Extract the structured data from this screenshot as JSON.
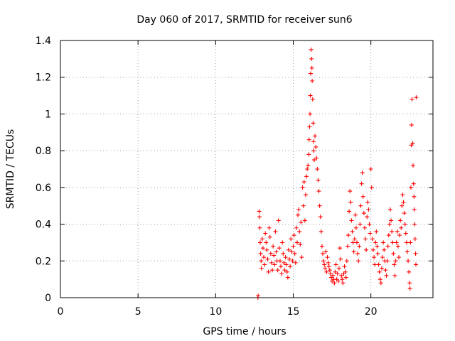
{
  "chart_data": {
    "type": "scatter",
    "title": "Day 060 of 2017, SRMTID for receiver sun6",
    "xlabel": "GPS time / hours",
    "ylabel": "SRMTID / TECUs",
    "xlim": [
      0,
      24
    ],
    "ylim": [
      0,
      1.4
    ],
    "xticks": [
      0,
      5,
      10,
      15,
      20
    ],
    "xtick_labels": [
      "0",
      "5",
      "10",
      "15",
      "20"
    ],
    "yticks": [
      0,
      0.2,
      0.4,
      0.6,
      0.8,
      1,
      1.2,
      1.4
    ],
    "ytick_labels": [
      "0",
      "0.2",
      "0.4",
      "0.6",
      "0.8",
      "1",
      "1.2",
      "1.4"
    ],
    "grid": true,
    "legend": "none",
    "marker": "plus",
    "color": "#ff0000",
    "series": [
      {
        "values": [
          [
            12.72,
            0.0
          ],
          [
            12.74,
            0.01
          ],
          [
            12.8,
            0.47
          ],
          [
            12.82,
            0.44
          ],
          [
            12.85,
            0.38
          ],
          [
            12.87,
            0.3
          ],
          [
            12.9,
            0.24
          ],
          [
            12.93,
            0.2
          ],
          [
            12.95,
            0.16
          ],
          [
            13.0,
            0.32
          ],
          [
            13.05,
            0.27
          ],
          [
            13.1,
            0.22
          ],
          [
            13.15,
            0.18
          ],
          [
            13.2,
            0.35
          ],
          [
            13.25,
            0.3
          ],
          [
            13.3,
            0.26
          ],
          [
            13.35,
            0.21
          ],
          [
            13.4,
            0.14
          ],
          [
            13.45,
            0.38
          ],
          [
            13.5,
            0.33
          ],
          [
            13.55,
            0.24
          ],
          [
            13.6,
            0.19
          ],
          [
            13.65,
            0.15
          ],
          [
            13.7,
            0.28
          ],
          [
            13.75,
            0.23
          ],
          [
            13.8,
            0.18
          ],
          [
            13.85,
            0.36
          ],
          [
            13.9,
            0.25
          ],
          [
            13.95,
            0.2
          ],
          [
            14.0,
            0.15
          ],
          [
            14.05,
            0.42
          ],
          [
            14.1,
            0.27
          ],
          [
            14.15,
            0.2
          ],
          [
            14.2,
            0.17
          ],
          [
            14.25,
            0.13
          ],
          [
            14.3,
            0.3
          ],
          [
            14.35,
            0.24
          ],
          [
            14.4,
            0.19
          ],
          [
            14.45,
            0.15
          ],
          [
            14.5,
            0.22
          ],
          [
            14.55,
            0.18
          ],
          [
            14.6,
            0.14
          ],
          [
            14.65,
            0.11
          ],
          [
            14.7,
            0.26
          ],
          [
            14.75,
            0.21
          ],
          [
            14.8,
            0.17
          ],
          [
            14.85,
            0.32
          ],
          [
            14.9,
            0.25
          ],
          [
            14.95,
            0.2
          ],
          [
            15.0,
            0.28
          ],
          [
            15.05,
            0.34
          ],
          [
            15.1,
            0.24
          ],
          [
            15.15,
            0.19
          ],
          [
            15.2,
            0.38
          ],
          [
            15.25,
            0.3
          ],
          [
            15.3,
            0.45
          ],
          [
            15.35,
            0.48
          ],
          [
            15.4,
            0.36
          ],
          [
            15.45,
            0.29
          ],
          [
            15.5,
            0.41
          ],
          [
            15.55,
            0.22
          ],
          [
            15.6,
            0.6
          ],
          [
            15.65,
            0.5
          ],
          [
            15.7,
            0.63
          ],
          [
            15.75,
            0.42
          ],
          [
            15.8,
            0.56
          ],
          [
            15.85,
            0.66
          ],
          [
            15.9,
            0.7
          ],
          [
            15.95,
            0.72
          ],
          [
            16.0,
            0.78
          ],
          [
            16.02,
            0.86
          ],
          [
            16.05,
            0.93
          ],
          [
            16.08,
            1.0
          ],
          [
            16.1,
            1.1
          ],
          [
            16.12,
            1.22
          ],
          [
            16.15,
            1.35
          ],
          [
            16.18,
            1.3
          ],
          [
            16.2,
            1.25
          ],
          [
            16.22,
            1.18
          ],
          [
            16.25,
            1.08
          ],
          [
            16.28,
            0.95
          ],
          [
            16.3,
            0.85
          ],
          [
            16.32,
            0.8
          ],
          [
            16.35,
            0.75
          ],
          [
            16.4,
            0.88
          ],
          [
            16.45,
            0.82
          ],
          [
            16.5,
            0.76
          ],
          [
            16.55,
            0.7
          ],
          [
            16.6,
            0.64
          ],
          [
            16.65,
            0.58
          ],
          [
            16.7,
            0.5
          ],
          [
            16.75,
            0.44
          ],
          [
            16.8,
            0.36
          ],
          [
            16.85,
            0.28
          ],
          [
            16.9,
            0.24
          ],
          [
            16.95,
            0.2
          ],
          [
            17.0,
            0.18
          ],
          [
            17.05,
            0.16
          ],
          [
            17.1,
            0.25
          ],
          [
            17.15,
            0.14
          ],
          [
            17.2,
            0.22
          ],
          [
            17.25,
            0.19
          ],
          [
            17.3,
            0.17
          ],
          [
            17.35,
            0.15
          ],
          [
            17.4,
            0.13
          ],
          [
            17.45,
            0.11
          ],
          [
            17.5,
            0.09
          ],
          [
            17.55,
            0.12
          ],
          [
            17.6,
            0.1
          ],
          [
            17.65,
            0.08
          ],
          [
            17.7,
            0.14
          ],
          [
            17.75,
            0.18
          ],
          [
            17.8,
            0.1
          ],
          [
            17.85,
            0.13
          ],
          [
            17.9,
            0.09
          ],
          [
            17.95,
            0.16
          ],
          [
            18.0,
            0.27
          ],
          [
            18.05,
            0.21
          ],
          [
            18.1,
            0.12
          ],
          [
            18.15,
            0.1
          ],
          [
            18.2,
            0.08
          ],
          [
            18.25,
            0.13
          ],
          [
            18.3,
            0.17
          ],
          [
            18.35,
            0.14
          ],
          [
            18.4,
            0.11
          ],
          [
            18.45,
            0.2
          ],
          [
            18.5,
            0.28
          ],
          [
            18.55,
            0.34
          ],
          [
            18.6,
            0.47
          ],
          [
            18.65,
            0.58
          ],
          [
            18.7,
            0.52
          ],
          [
            18.75,
            0.42
          ],
          [
            18.8,
            0.36
          ],
          [
            18.85,
            0.3
          ],
          [
            18.9,
            0.25
          ],
          [
            18.95,
            0.32
          ],
          [
            19.0,
            0.45
          ],
          [
            19.05,
            0.38
          ],
          [
            19.1,
            0.3
          ],
          [
            19.15,
            0.24
          ],
          [
            19.2,
            0.2
          ],
          [
            19.25,
            0.28
          ],
          [
            19.3,
            0.4
          ],
          [
            19.35,
            0.5
          ],
          [
            19.4,
            0.62
          ],
          [
            19.45,
            0.68
          ],
          [
            19.5,
            0.55
          ],
          [
            19.55,
            0.46
          ],
          [
            19.6,
            0.38
          ],
          [
            19.65,
            0.32
          ],
          [
            19.7,
            0.26
          ],
          [
            19.75,
            0.44
          ],
          [
            19.8,
            0.52
          ],
          [
            19.85,
            0.48
          ],
          [
            19.9,
            0.4
          ],
          [
            19.95,
            0.35
          ],
          [
            20.0,
            0.7
          ],
          [
            20.05,
            0.6
          ],
          [
            20.1,
            0.32
          ],
          [
            20.15,
            0.26
          ],
          [
            20.2,
            0.22
          ],
          [
            20.25,
            0.18
          ],
          [
            20.3,
            0.3
          ],
          [
            20.35,
            0.36
          ],
          [
            20.4,
            0.28
          ],
          [
            20.45,
            0.24
          ],
          [
            20.5,
            0.18
          ],
          [
            20.55,
            0.14
          ],
          [
            20.6,
            0.1
          ],
          [
            20.65,
            0.08
          ],
          [
            20.7,
            0.16
          ],
          [
            20.75,
            0.22
          ],
          [
            20.8,
            0.3
          ],
          [
            20.85,
            0.26
          ],
          [
            20.9,
            0.2
          ],
          [
            20.95,
            0.15
          ],
          [
            21.0,
            0.12
          ],
          [
            21.05,
            0.2
          ],
          [
            21.1,
            0.28
          ],
          [
            21.15,
            0.34
          ],
          [
            21.2,
            0.4
          ],
          [
            21.25,
            0.48
          ],
          [
            21.3,
            0.42
          ],
          [
            21.35,
            0.36
          ],
          [
            21.4,
            0.3
          ],
          [
            21.45,
            0.24
          ],
          [
            21.5,
            0.18
          ],
          [
            21.55,
            0.12
          ],
          [
            21.6,
            0.2
          ],
          [
            21.65,
            0.3
          ],
          [
            21.7,
            0.36
          ],
          [
            21.75,
            0.28
          ],
          [
            21.8,
            0.22
          ],
          [
            21.85,
            0.34
          ],
          [
            21.9,
            0.42
          ],
          [
            21.95,
            0.38
          ],
          [
            22.0,
            0.5
          ],
          [
            22.05,
            0.56
          ],
          [
            22.1,
            0.52
          ],
          [
            22.15,
            0.46
          ],
          [
            22.2,
            0.4
          ],
          [
            22.25,
            0.35
          ],
          [
            22.3,
            0.3
          ],
          [
            22.35,
            0.25
          ],
          [
            22.4,
            0.2
          ],
          [
            22.45,
            0.14
          ],
          [
            22.5,
            0.08
          ],
          [
            22.52,
            0.05
          ],
          [
            22.55,
            0.3
          ],
          [
            22.58,
            0.6
          ],
          [
            22.6,
            0.83
          ],
          [
            22.62,
            0.94
          ],
          [
            22.65,
            1.08
          ],
          [
            22.7,
            0.84
          ],
          [
            22.72,
            0.72
          ],
          [
            22.75,
            0.62
          ],
          [
            22.78,
            0.55
          ],
          [
            22.8,
            0.48
          ],
          [
            22.82,
            0.4
          ],
          [
            22.85,
            0.32
          ],
          [
            22.88,
            0.24
          ],
          [
            22.9,
            0.18
          ],
          [
            22.92,
            1.09
          ]
        ]
      }
    ]
  }
}
